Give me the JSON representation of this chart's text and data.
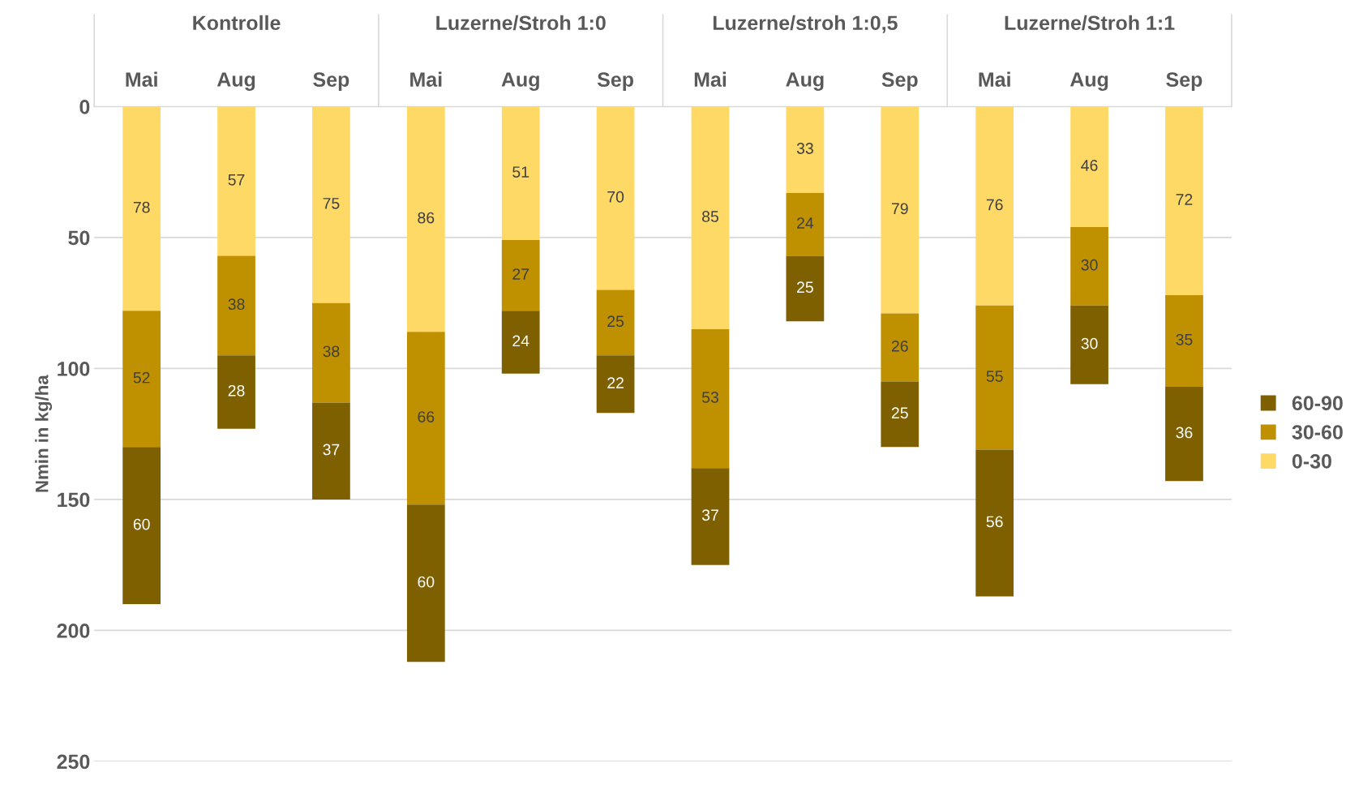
{
  "chart_data": {
    "type": "bar",
    "stacked": true,
    "ylabel": "Nmin in kg/ha",
    "categories": [
      "Mai",
      "Aug",
      "Sep",
      "Mai",
      "Aug",
      "Sep",
      "Mai",
      "Aug",
      "Sep",
      "Mai",
      "Aug",
      "Sep"
    ],
    "annotations": [
      "Kontrolle",
      "Luzerne/Stroh 1:0",
      "Luzerne/stroh 1:0,5",
      "Luzerne/Stroh 1:1"
    ],
    "series": [
      {
        "name": "0-30",
        "color": "#ffd966",
        "values": [
          78,
          57,
          75,
          86,
          51,
          70,
          85,
          33,
          79,
          76,
          46,
          72
        ]
      },
      {
        "name": "30-60",
        "color": "#bf9000",
        "values": [
          52,
          38,
          38,
          66,
          27,
          25,
          53,
          24,
          26,
          55,
          30,
          35
        ]
      },
      {
        "name": "60-90",
        "color": "#7f6000",
        "values": [
          60,
          28,
          37,
          60,
          24,
          22,
          37,
          25,
          25,
          56,
          30,
          36
        ]
      }
    ],
    "ylim": [
      250,
      0
    ],
    "yticks": [
      0,
      50,
      100,
      150,
      200,
      250
    ],
    "grid": "y",
    "legend": "right",
    "data_labels": true
  }
}
